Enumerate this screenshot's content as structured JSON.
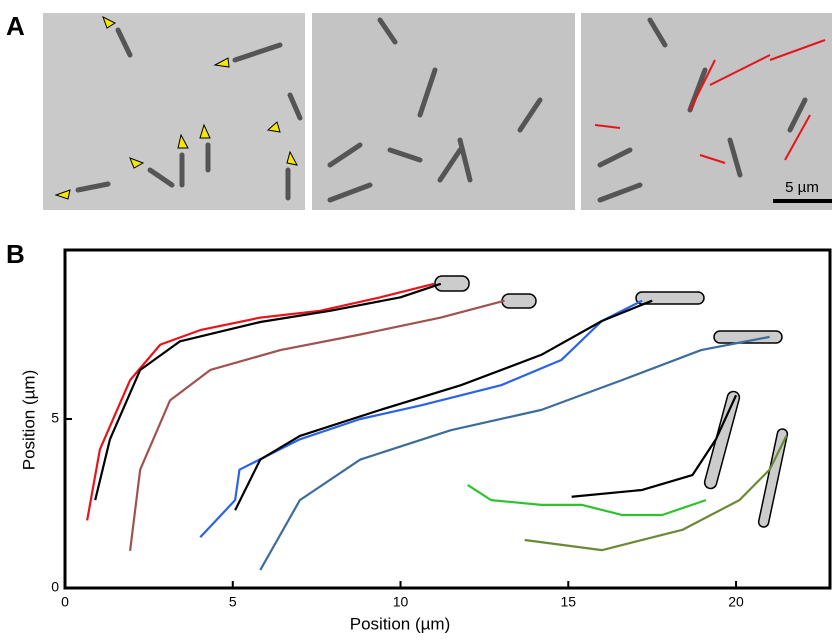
{
  "panel_a": {
    "label": "A",
    "scale_bar": "5 µm"
  },
  "chart_data": {
    "type": "line",
    "panel_label": "B",
    "xlabel": "Position (µm)",
    "ylabel": "Position (µm)",
    "xlim": [
      0,
      22.8
    ],
    "ylim": [
      0,
      10
    ],
    "xticks": [
      0,
      5,
      10,
      15,
      20
    ],
    "yticks": [
      0,
      5
    ],
    "series": [
      {
        "color": "#e8141b",
        "x": [
          0.66,
          1.04,
          1.94,
          2.84,
          4.03,
          5.82,
          7.6,
          9.4,
          11.0
        ],
        "values": [
          2.0,
          4.1,
          6.15,
          7.2,
          7.63,
          8.0,
          8.2,
          8.6,
          9.0
        ]
      },
      {
        "color": "#000000",
        "x": [
          0.9,
          1.34,
          2.24,
          3.43,
          5.82,
          7.9,
          10.0,
          11.2
        ],
        "values": [
          2.6,
          4.4,
          6.45,
          7.3,
          7.87,
          8.2,
          8.6,
          9.0
        ]
      },
      {
        "color": "#a0524f",
        "x": [
          1.94,
          2.24,
          3.13,
          4.33,
          6.42,
          8.8,
          11.2,
          13.1
        ],
        "values": [
          1.1,
          3.5,
          5.55,
          6.45,
          7.04,
          7.5,
          8.0,
          8.5
        ]
      },
      {
        "color": "#2b63e8",
        "x": [
          4.03,
          5.07,
          5.2,
          7.0,
          8.8,
          10.6,
          13.0,
          14.8,
          16.0,
          17.2
        ],
        "values": [
          1.5,
          2.6,
          3.5,
          4.4,
          5.0,
          5.4,
          6.0,
          6.75,
          7.9,
          8.5
        ]
      },
      {
        "color": "#000000",
        "x": [
          5.07,
          5.82,
          7.0,
          9.4,
          11.8,
          14.2,
          16.0,
          17.5
        ],
        "values": [
          2.3,
          3.8,
          4.5,
          5.27,
          6.0,
          6.9,
          7.9,
          8.5
        ]
      },
      {
        "color": "#3d6d9c",
        "x": [
          5.82,
          7.0,
          8.8,
          11.5,
          14.2,
          16.6,
          18.96,
          21.0
        ],
        "values": [
          0.53,
          2.6,
          3.8,
          4.67,
          5.27,
          6.15,
          7.04,
          7.43
        ]
      },
      {
        "color": "#000000",
        "x": [
          15.1,
          17.2,
          18.7,
          19.4,
          20.0
        ],
        "values": [
          2.7,
          2.9,
          3.34,
          4.4,
          5.7
        ]
      },
      {
        "color": "#2ec22e",
        "x": [
          12.0,
          12.7,
          14.2,
          15.4,
          16.6,
          17.8,
          19.1
        ],
        "values": [
          3.05,
          2.6,
          2.46,
          2.46,
          2.16,
          2.16,
          2.6
        ]
      },
      {
        "color": "#6b8a35",
        "x": [
          13.7,
          16.0,
          18.4,
          20.1,
          21.0,
          21.5
        ],
        "values": [
          1.42,
          1.12,
          1.72,
          2.6,
          3.5,
          4.5
        ]
      }
    ]
  }
}
